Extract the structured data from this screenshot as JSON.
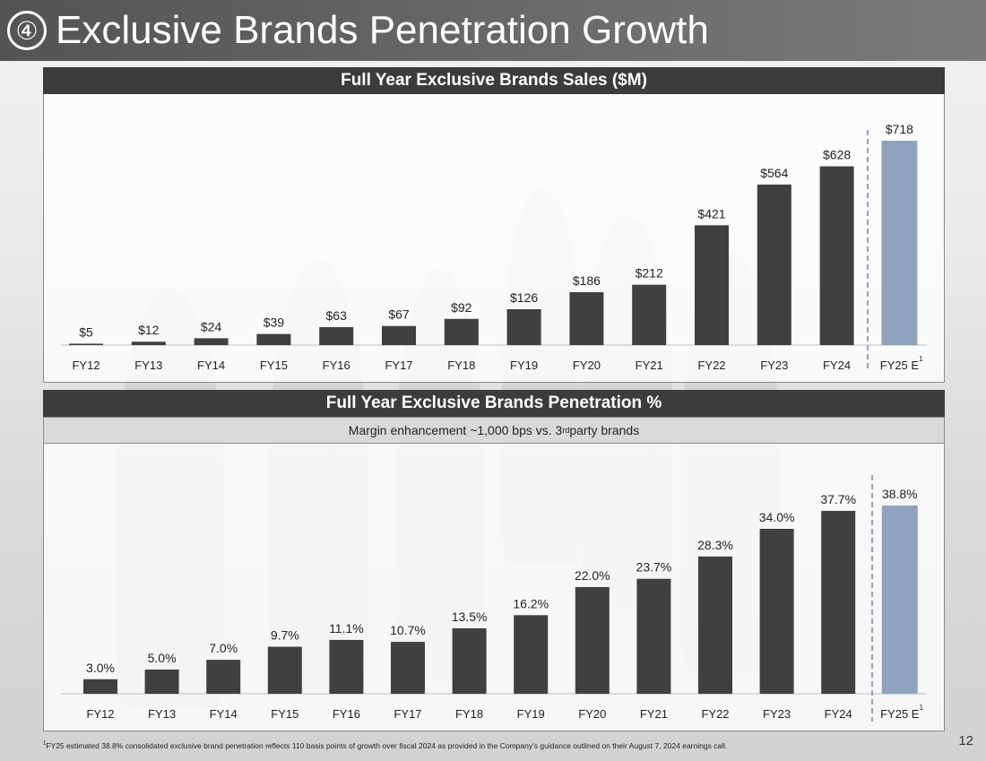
{
  "title": {
    "number": "④",
    "text": "Exclusive Brands Penetration Growth"
  },
  "colors": {
    "actual": "#404040",
    "estimate": "#8fa3bf",
    "divider": "#8fa3bf"
  },
  "chart_data": [
    {
      "type": "bar",
      "title": "Full Year Exclusive Brands Sales ($M)",
      "categories": [
        "FY12",
        "FY13",
        "FY14",
        "FY15",
        "FY16",
        "FY17",
        "FY18",
        "FY19",
        "FY20",
        "FY21",
        "FY22",
        "FY23",
        "FY24",
        "FY25 E"
      ],
      "footnote_marker": "1",
      "values": [
        5,
        12,
        24,
        39,
        63,
        67,
        92,
        126,
        186,
        212,
        421,
        564,
        628,
        718
      ],
      "labels": [
        "$5",
        "$12",
        "$24",
        "$39",
        "$63",
        "$67",
        "$92",
        "$126",
        "$186",
        "$212",
        "$421",
        "$564",
        "$628",
        "$718"
      ],
      "estimate_index": 13,
      "ylim": [
        0,
        718
      ]
    },
    {
      "type": "bar",
      "title": "Full Year Exclusive Brands Penetration %",
      "subtitle": {
        "pre": "Margin enhancement ~1,000 bps vs. 3",
        "sup": "rd",
        "post": " party brands"
      },
      "categories": [
        "FY12",
        "FY13",
        "FY14",
        "FY15",
        "FY16",
        "FY17",
        "FY18",
        "FY19",
        "FY20",
        "FY21",
        "FY22",
        "FY23",
        "FY24",
        "FY25 E"
      ],
      "footnote_marker": "1",
      "values": [
        3.0,
        5.0,
        7.0,
        9.7,
        11.1,
        10.7,
        13.5,
        16.2,
        22.0,
        23.7,
        28.3,
        34.0,
        37.7,
        38.8
      ],
      "labels": [
        "3.0%",
        "5.0%",
        "7.0%",
        "9.7%",
        "11.1%",
        "10.7%",
        "13.5%",
        "16.2%",
        "22.0%",
        "23.7%",
        "28.3%",
        "34.0%",
        "37.7%",
        "38.8%"
      ],
      "estimate_index": 13,
      "ylim": [
        0,
        38.8
      ]
    }
  ],
  "footnote": {
    "marker": "1",
    "text": "FY25 estimated 38.8% consolidated exclusive brand penetration reflects 110 basis points of growth over fiscal 2024 as provided in the Company’s guidance outlined on their August 7, 2024 earnings call."
  },
  "page_number": "12"
}
